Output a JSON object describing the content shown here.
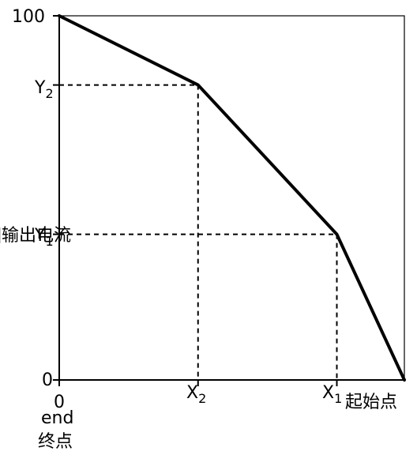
{
  "chart_data": {
    "type": "line",
    "ylabel": "[%]输出电流",
    "y_tick_labels": {
      "top": "100",
      "bottom": "0"
    },
    "x_tick_labels": {
      "origin": "0"
    },
    "origin_labels": {
      "end_en": "end",
      "end_zh": "终点"
    },
    "start_label": "起始点",
    "breakpoints": [
      {
        "x_label": "X",
        "x_sub": "2",
        "y_label": "Y",
        "y_sub": "2"
      },
      {
        "x_label": "X",
        "x_sub": "1",
        "y_label": "Y",
        "y_sub": "1"
      }
    ],
    "series": [
      {
        "points": [
          [
            0,
            100
          ],
          [
            37,
            81
          ],
          [
            74,
            40
          ],
          [
            92,
            0
          ]
        ]
      }
    ],
    "xlim": [
      0,
      92
    ],
    "ylim": [
      0,
      100
    ],
    "grid": false,
    "line_color": "#000000",
    "guide_style": "dashed"
  }
}
